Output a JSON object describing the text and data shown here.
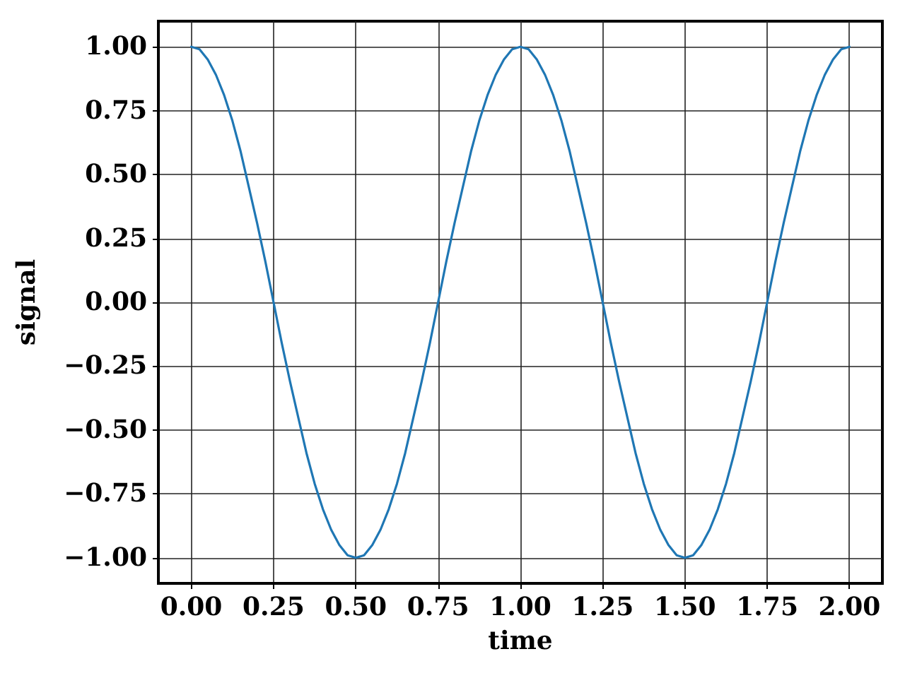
{
  "chart_data": {
    "type": "line",
    "xlabel": "time",
    "ylabel": "signal",
    "x": [
      0,
      0.025,
      0.05,
      0.075,
      0.1,
      0.125,
      0.15,
      0.175,
      0.2,
      0.225,
      0.25,
      0.275,
      0.3,
      0.325,
      0.35,
      0.375,
      0.4,
      0.425,
      0.45,
      0.475,
      0.5,
      0.525,
      0.55,
      0.575,
      0.6,
      0.625,
      0.65,
      0.675,
      0.7,
      0.725,
      0.75,
      0.775,
      0.8,
      0.825,
      0.85,
      0.875,
      0.9,
      0.925,
      0.95,
      0.975,
      1,
      1.025,
      1.05,
      1.075,
      1.1,
      1.125,
      1.15,
      1.175,
      1.2,
      1.225,
      1.25,
      1.275,
      1.3,
      1.325,
      1.35,
      1.375,
      1.4,
      1.425,
      1.45,
      1.475,
      1.5,
      1.525,
      1.55,
      1.575,
      1.6,
      1.625,
      1.65,
      1.675,
      1.7,
      1.725,
      1.75,
      1.775,
      1.8,
      1.825,
      1.85,
      1.875,
      1.9,
      1.925,
      1.95,
      1.975,
      2
    ],
    "values": [
      1,
      0.99,
      0.95,
      0.89,
      0.81,
      0.71,
      0.59,
      0.45,
      0.31,
      0.16,
      0,
      -0.16,
      -0.31,
      -0.45,
      -0.59,
      -0.71,
      -0.81,
      -0.89,
      -0.95,
      -0.99,
      -1,
      -0.99,
      -0.95,
      -0.89,
      -0.81,
      -0.71,
      -0.59,
      -0.45,
      -0.31,
      -0.16,
      0,
      0.16,
      0.31,
      0.45,
      0.59,
      0.71,
      0.81,
      0.89,
      0.95,
      0.99,
      1,
      0.99,
      0.95,
      0.89,
      0.81,
      0.71,
      0.59,
      0.45,
      0.31,
      0.16,
      0,
      -0.16,
      -0.31,
      -0.45,
      -0.59,
      -0.71,
      -0.81,
      -0.89,
      -0.95,
      -0.99,
      -1,
      -0.99,
      -0.95,
      -0.89,
      -0.81,
      -0.71,
      -0.59,
      -0.45,
      -0.31,
      -0.16,
      0,
      0.16,
      0.31,
      0.45,
      0.59,
      0.71,
      0.81,
      0.89,
      0.95,
      0.99,
      1
    ],
    "color": "#1f77b4",
    "xlim": [
      -0.1,
      2.1
    ],
    "ylim": [
      -1.1,
      1.1
    ],
    "xticks": [
      {
        "value": 0,
        "label": "0.00"
      },
      {
        "value": 0.25,
        "label": "0.25"
      },
      {
        "value": 0.5,
        "label": "0.50"
      },
      {
        "value": 0.75,
        "label": "0.75"
      },
      {
        "value": 1,
        "label": "1.00"
      },
      {
        "value": 1.25,
        "label": "1.25"
      },
      {
        "value": 1.5,
        "label": "1.50"
      },
      {
        "value": 1.75,
        "label": "1.75"
      },
      {
        "value": 2,
        "label": "2.00"
      }
    ],
    "yticks": [
      {
        "value": -1,
        "label": "−1.00"
      },
      {
        "value": -0.75,
        "label": "−0.75"
      },
      {
        "value": -0.5,
        "label": "−0.50"
      },
      {
        "value": -0.25,
        "label": "−0.25"
      },
      {
        "value": 0,
        "label": "0.00"
      },
      {
        "value": 0.25,
        "label": "0.25"
      },
      {
        "value": 0.5,
        "label": "0.50"
      },
      {
        "value": 0.75,
        "label": "0.75"
      },
      {
        "value": 1,
        "label": "1.00"
      }
    ],
    "grid": true,
    "marker": "none",
    "line_style": "solid"
  }
}
